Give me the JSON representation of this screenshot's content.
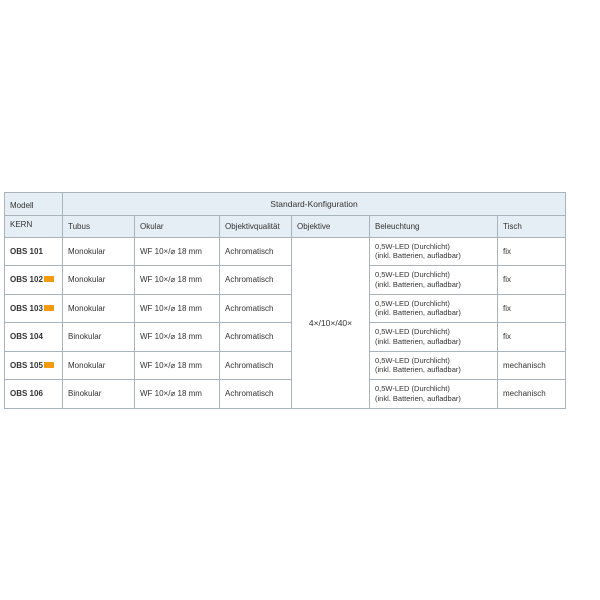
{
  "headers": {
    "model": "Modell",
    "kern": "KERN",
    "standard_config": "Standard-Konfiguration",
    "tubus": "Tubus",
    "okular": "Okular",
    "objektivqualitat": "Objektivqualität",
    "objektive": "Objektive",
    "beleuchtung": "Beleuchtung",
    "tisch": "Tisch"
  },
  "objektive_value": "4×/10×/40×",
  "lighting": {
    "line1": "0,5W-LED (Durchlicht)",
    "line2": "(inkl. Batterien, aufladbar)"
  },
  "rows": [
    {
      "model": "OBS 101",
      "badge": false,
      "tubus": "Monokular",
      "okular": "WF 10×/⌀ 18 mm",
      "objq": "Achromatisch",
      "tisch": "fix"
    },
    {
      "model": "OBS 102",
      "badge": true,
      "tubus": "Monokular",
      "okular": "WF 10×/⌀ 18 mm",
      "objq": "Achromatisch",
      "tisch": "fix"
    },
    {
      "model": "OBS 103",
      "badge": true,
      "tubus": "Monokular",
      "okular": "WF 10×/⌀ 18 mm",
      "objq": "Achromatisch",
      "tisch": "fix"
    },
    {
      "model": "OBS 104",
      "badge": false,
      "tubus": "Binokular",
      "okular": "WF 10×/⌀ 18 mm",
      "objq": "Achromatisch",
      "tisch": "fix"
    },
    {
      "model": "OBS 105",
      "badge": true,
      "tubus": "Monokular",
      "okular": "WF 10×/⌀ 18 mm",
      "objq": "Achromatisch",
      "tisch": "mechanisch"
    },
    {
      "model": "OBS 106",
      "badge": false,
      "tubus": "Binokular",
      "okular": "WF 10×/⌀ 18 mm",
      "objq": "Achromatisch",
      "tisch": "mechanisch"
    }
  ],
  "colors": {
    "header_bg": "#e5eef4",
    "border": "#a8b4bc",
    "badge": "#f39c12",
    "text": "#333333"
  }
}
